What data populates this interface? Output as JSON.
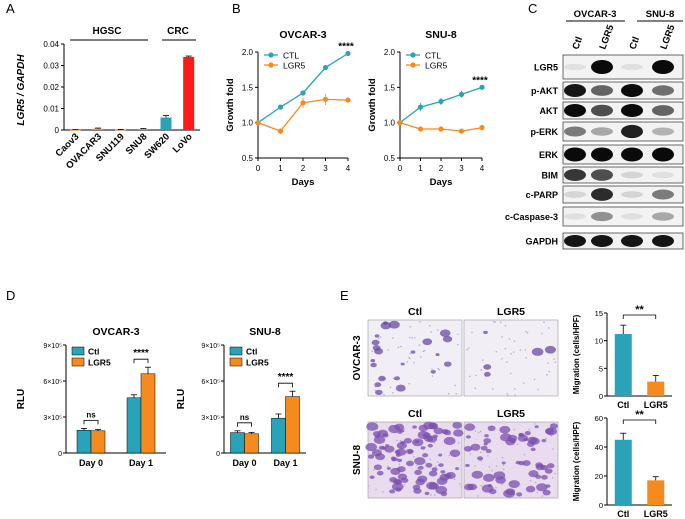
{
  "colors": {
    "teal": "#2aa3b8",
    "orange": "#f58a1f",
    "red": "#ff1a1a",
    "gray_line": "#999999",
    "black": "#000000"
  },
  "panel_letters": {
    "a": "A",
    "b": "B",
    "c": "C",
    "d": "D",
    "e": "E"
  },
  "panelA": {
    "ylabel": "LGR5 / GAPDH",
    "group_labels": {
      "hgsc": "HGSC",
      "crc": "CRC"
    },
    "chart_data": {
      "type": "bar",
      "ylabel": "LGR5 / GAPDH",
      "categories": [
        "Caov3",
        "OVACAR3",
        "SNU119",
        "SNU8",
        "SW620",
        "LoVo"
      ],
      "values": [
        0.0001,
        0.0006,
        0.0002,
        0.0005,
        0.0058,
        0.034
      ],
      "errors": [
        0.0001,
        0.0003,
        0.0001,
        0.0002,
        0.0009,
        0.0004
      ],
      "colors": [
        "#f58a1f",
        "#f58a1f",
        "#f58a1f",
        "#f58a1f",
        "#2aa3b8",
        "#ff1a1a"
      ],
      "ylim": [
        0,
        0.04
      ],
      "yticks": [
        0,
        0.01,
        0.02,
        0.03,
        0.04
      ],
      "ytick_labels": [
        "0",
        "0.01",
        "0.02",
        "0.03",
        "0.04"
      ]
    }
  },
  "panelB": {
    "charts": [
      {
        "title": "OVCAR-3",
        "type": "line",
        "xlabel": "Days",
        "ylabel": "Growth fold",
        "x": [
          0,
          1,
          2,
          3,
          4
        ],
        "xlim": [
          0,
          4
        ],
        "ylim": [
          0.5,
          2.0
        ],
        "yticks": [
          0.5,
          1.0,
          1.5,
          2.0
        ],
        "ytick_labels": [
          "0.5",
          "1.0",
          "1.5",
          "2.0"
        ],
        "xtick_labels": [
          "0",
          "1",
          "2",
          "3",
          "4"
        ],
        "significance": "****",
        "series": [
          {
            "name": "CTL",
            "color": "#2aa3b8",
            "values": [
              1.0,
              1.22,
              1.42,
              1.78,
              1.98
            ],
            "errors": [
              0.01,
              0.02,
              0.02,
              0.03,
              0.03
            ]
          },
          {
            "name": "LGR5",
            "color": "#f58a1f",
            "values": [
              1.0,
              0.88,
              1.28,
              1.33,
              1.32
            ],
            "errors": [
              0.01,
              0.04,
              0.07,
              0.08,
              0.02
            ]
          }
        ]
      },
      {
        "title": "SNU-8",
        "type": "line",
        "xlabel": "Days",
        "ylabel": "Growth fold",
        "x": [
          0,
          1,
          2,
          3,
          4
        ],
        "xlim": [
          0,
          4
        ],
        "ylim": [
          0.5,
          2.0
        ],
        "yticks": [
          0.5,
          1.0,
          1.5,
          2.0
        ],
        "ytick_labels": [
          "0.5",
          "1.0",
          "1.5",
          "2.0"
        ],
        "xtick_labels": [
          "0",
          "1",
          "2",
          "3",
          "4"
        ],
        "significance": "****",
        "series": [
          {
            "name": "CTL",
            "color": "#2aa3b8",
            "values": [
              1.0,
              1.22,
              1.3,
              1.4,
              1.5
            ],
            "errors": [
              0.02,
              0.06,
              0.05,
              0.05,
              0.02
            ]
          },
          {
            "name": "LGR5",
            "color": "#f58a1f",
            "values": [
              1.0,
              0.91,
              0.91,
              0.88,
              0.93
            ],
            "errors": [
              0.02,
              0.03,
              0.03,
              0.02,
              0.03
            ]
          }
        ]
      }
    ]
  },
  "panelC": {
    "group_labels": [
      "OVCAR-3",
      "SNU-8"
    ],
    "lane_labels": [
      "Ctl",
      "LGR5",
      "Ctl",
      "LGR5"
    ],
    "rows": [
      {
        "label": "LGR5",
        "bands": [
          0.05,
          1.0,
          0.05,
          1.0
        ]
      },
      {
        "label": "p-AKT",
        "bands": [
          0.95,
          0.6,
          1.0,
          0.55
        ]
      },
      {
        "label": "AKT",
        "bands": [
          1.0,
          0.7,
          1.0,
          0.6
        ]
      },
      {
        "label": "p-ERK",
        "bands": [
          0.5,
          0.3,
          0.9,
          0.25
        ]
      },
      {
        "label": "ERK",
        "bands": [
          1.0,
          1.0,
          1.0,
          1.0
        ]
      },
      {
        "label": "BIM",
        "bands": [
          0.8,
          0.7,
          0.1,
          0.05
        ]
      },
      {
        "label": "c-PARP",
        "bands": [
          0.1,
          0.85,
          0.1,
          0.5
        ]
      },
      {
        "label": "c-Caspase-3",
        "bands": [
          0.05,
          0.4,
          0.05,
          0.3
        ]
      },
      {
        "label": "GAPDH",
        "bands": [
          0.95,
          0.95,
          0.95,
          0.95
        ]
      }
    ]
  },
  "panelD": {
    "legend": [
      "Ctl",
      "LGR5"
    ],
    "ylabel": "RLU",
    "charts": [
      {
        "title": "OVCAR-3",
        "type": "bar",
        "categories": [
          "Day 0",
          "Day 1"
        ],
        "ylim": [
          0,
          900000
        ],
        "ytick_labels": [
          "0",
          "3×10⁵",
          "6×10⁵",
          "9×10⁵"
        ],
        "yticks": [
          0,
          300000,
          600000,
          900000
        ],
        "series": [
          {
            "name": "Ctl",
            "color": "#2aa3b8",
            "values": [
              190000,
              460000
            ],
            "errors": [
              15000,
              25000
            ]
          },
          {
            "name": "LGR5",
            "color": "#f58a1f",
            "values": [
              185000,
              660000
            ],
            "errors": [
              12000,
              55000
            ]
          }
        ],
        "significance": [
          "ns",
          "****"
        ]
      },
      {
        "title": "SNU-8",
        "type": "bar",
        "categories": [
          "Day 0",
          "Day 1"
        ],
        "ylim": [
          0,
          900000
        ],
        "ytick_labels": [
          "0",
          "3×10⁵",
          "6×10⁵",
          "9×10⁵"
        ],
        "yticks": [
          0,
          300000,
          600000,
          900000
        ],
        "series": [
          {
            "name": "Ctl",
            "color": "#2aa3b8",
            "values": [
              170000,
              290000
            ],
            "errors": [
              15000,
              35000
            ]
          },
          {
            "name": "LGR5",
            "color": "#f58a1f",
            "values": [
              160000,
              470000
            ],
            "errors": [
              12000,
              45000
            ]
          }
        ],
        "significance": [
          "ns",
          "****"
        ]
      }
    ]
  },
  "panelE": {
    "column_labels": [
      "Ctl",
      "LGR5"
    ],
    "row_labels": [
      "OVCAR-3",
      "SNU-8"
    ],
    "charts": [
      {
        "type": "bar",
        "ylabel": "Migration (cells/HPF)",
        "categories": [
          "Ctl",
          "LGR5"
        ],
        "values": [
          11.2,
          2.6
        ],
        "errors": [
          1.6,
          1.1
        ],
        "colors": [
          "#2aa3b8",
          "#f58a1f"
        ],
        "ylim": [
          0,
          15
        ],
        "yticks": [
          0,
          5,
          10,
          15
        ],
        "ytick_labels": [
          "0",
          "5",
          "10",
          "15"
        ],
        "significance": "**"
      },
      {
        "type": "bar",
        "ylabel": "Migration (cells/HPF)",
        "categories": [
          "Ctl",
          "LGR5"
        ],
        "values": [
          45,
          17
        ],
        "errors": [
          4.5,
          2.5
        ],
        "colors": [
          "#2aa3b8",
          "#f58a1f"
        ],
        "ylim": [
          0,
          60
        ],
        "yticks": [
          0,
          20,
          40,
          60
        ],
        "ytick_labels": [
          "0",
          "20",
          "40",
          "60"
        ],
        "significance": "**"
      }
    ]
  }
}
